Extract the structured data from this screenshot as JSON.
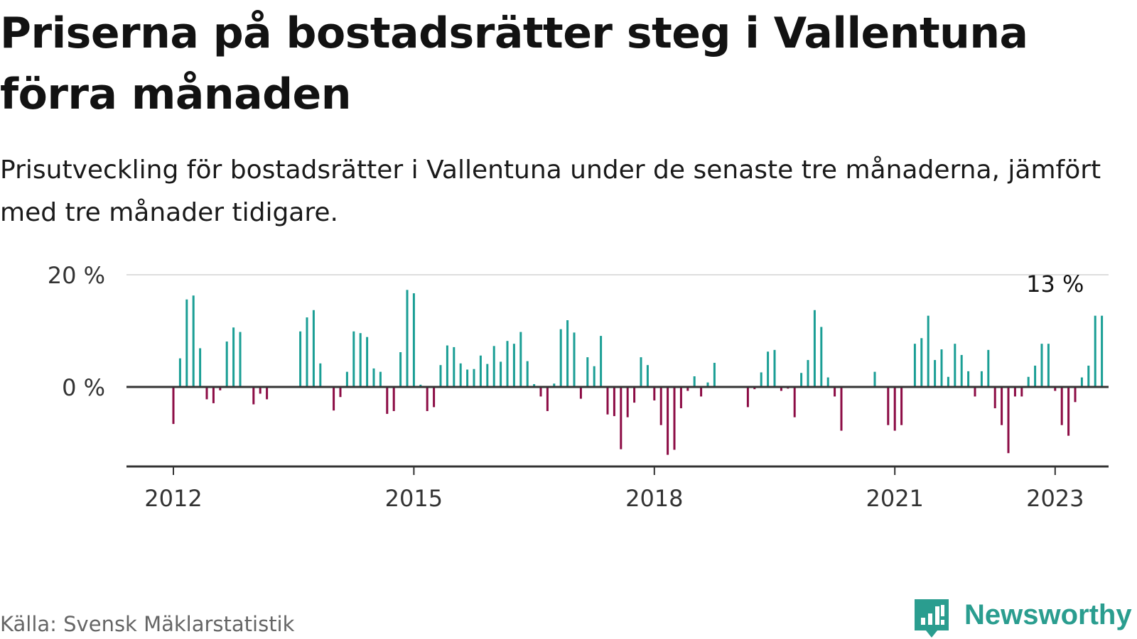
{
  "header": {
    "title": "Priserna på bostadsrätter steg i Vallentuna förra månaden",
    "subtitle": "Prisutveckling för bostadsrätter i Vallentuna under de senaste tre månaderna, jämfört med tre månader tidigare."
  },
  "footer": {
    "source": "Källa: Svensk Mäklarstatistik",
    "brand": "Newsworthy",
    "brand_icon": "newsworthy-logo-icon",
    "brand_color": "#2a9d8f"
  },
  "chart_data": {
    "type": "bar",
    "title": "",
    "xlabel": "",
    "ylabel": "",
    "x_start": "2012-01",
    "ylim": [
      -14,
      20
    ],
    "y_ticks": [
      {
        "value": 0,
        "label": "0 %"
      },
      {
        "value": 20,
        "label": "20 %"
      }
    ],
    "x_ticks": [
      {
        "month_index": 0,
        "label": "2012"
      },
      {
        "month_index": 36,
        "label": "2015"
      },
      {
        "month_index": 72,
        "label": "2018"
      },
      {
        "month_index": 108,
        "label": "2021"
      },
      {
        "month_index": 132,
        "label": "2023"
      }
    ],
    "grid": "horizontal",
    "colors": {
      "positive": "#1a9e95",
      "negative": "#8c0c45",
      "grid": "#dddddd",
      "axis": "#333333"
    },
    "annotation": {
      "label": "13 %",
      "month_index": 132
    },
    "values": [
      -6.6,
      5.1,
      15.6,
      16.3,
      6.9,
      -2.2,
      -2.9,
      -0.6,
      8.1,
      10.6,
      9.8,
      null,
      -3.1,
      -1.2,
      -2.2,
      null,
      null,
      null,
      null,
      9.9,
      12.4,
      13.7,
      4.2,
      null,
      -4.2,
      -1.8,
      2.7,
      9.9,
      9.6,
      8.9,
      3.3,
      2.7,
      -4.8,
      -4.3,
      6.2,
      17.3,
      16.7,
      0.4,
      -4.3,
      -3.6,
      3.9,
      7.4,
      7.1,
      4.2,
      3.1,
      3.2,
      5.6,
      4.1,
      7.3,
      4.5,
      8.2,
      7.7,
      9.8,
      4.6,
      0.5,
      -1.7,
      -4.3,
      0.6,
      10.3,
      11.9,
      9.7,
      -2.1,
      5.3,
      3.7,
      9.1,
      -4.9,
      -5.2,
      -11.1,
      -5.4,
      -2.8,
      5.3,
      3.9,
      -2.4,
      -6.8,
      -12.1,
      -11.2,
      -3.8,
      -0.7,
      1.9,
      -1.7,
      0.8,
      4.3,
      null,
      null,
      null,
      null,
      -3.6,
      -0.4,
      2.6,
      6.3,
      6.6,
      -0.7,
      -0.3,
      -5.4,
      2.5,
      4.8,
      13.7,
      10.7,
      1.7,
      -1.7,
      -7.8,
      null,
      null,
      null,
      null,
      2.7,
      null,
      -6.8,
      -7.8,
      -6.8,
      null,
      7.7,
      8.7,
      12.7,
      4.8,
      6.7,
      1.8,
      7.7,
      5.7,
      2.8,
      -1.7,
      2.8,
      6.6,
      -3.8,
      -6.8,
      -11.8,
      -1.7,
      -1.7,
      1.8,
      3.8,
      7.7,
      7.7,
      -0.7,
      -6.8,
      -8.7,
      -2.7,
      1.7,
      3.8,
      12.7,
      12.7
    ]
  }
}
